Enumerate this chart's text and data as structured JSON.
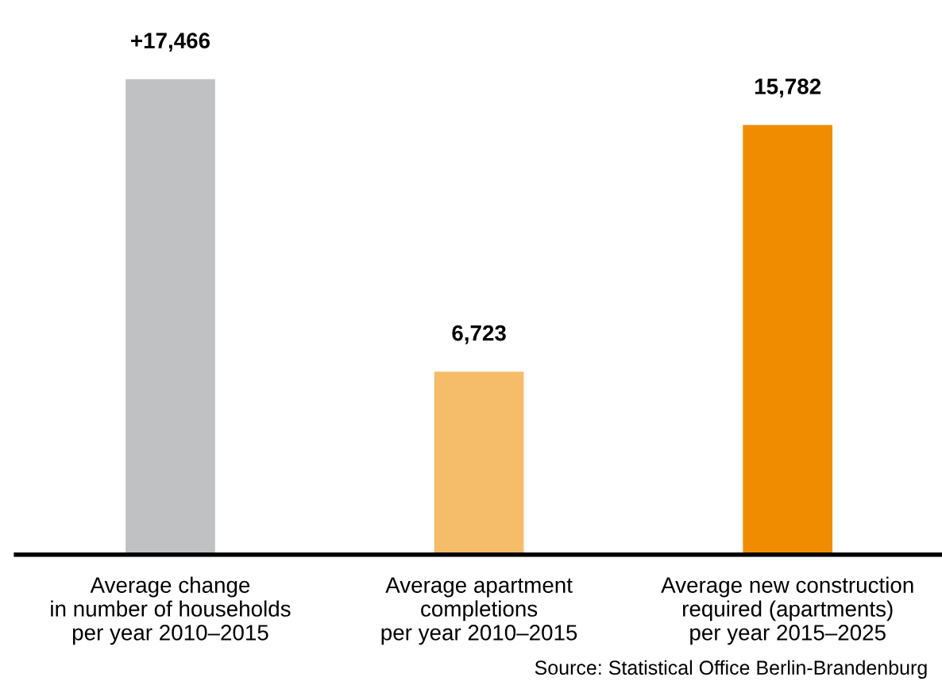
{
  "chart_data": {
    "type": "bar",
    "categories": [
      "Average change\nin number of households\nper year 2010–2015",
      "Average apartment\ncompletions\nper year 2010–2015",
      "Average new construction\nrequired (apartments)\nper year 2015–2025"
    ],
    "values": [
      17466,
      6723,
      15782
    ],
    "colors": [
      "#c0c1c3",
      "#f5bc69",
      "#f08c00"
    ],
    "value_labels": [
      "+17,466",
      "6,723",
      "15,782"
    ],
    "annotations": [
      "Source: Statistical Office Berlin-Brandenburg"
    ],
    "grid": false,
    "legend": false
  }
}
